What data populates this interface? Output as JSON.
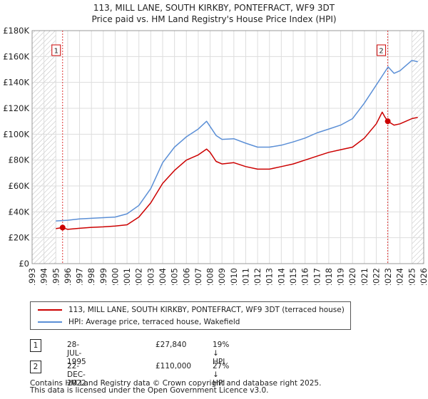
{
  "header": {
    "title": "113, MILL LANE, SOUTH KIRKBY, PONTEFRACT, WF9 3DT",
    "subtitle": "Price paid vs. HM Land Registry's House Price Index (HPI)"
  },
  "chart_data": {
    "type": "line",
    "title": "113, MILL LANE, SOUTH KIRKBY, PONTEFRACT, WF9 3DT",
    "subtitle": "Price paid vs. HM Land Registry's House Price Index (HPI)",
    "xlabel": "",
    "ylabel": "",
    "xlim": [
      1993,
      2026
    ],
    "ylim": [
      0,
      180000
    ],
    "grid": true,
    "x_ticks": [
      "1993",
      "1994",
      "1995",
      "1996",
      "1997",
      "1998",
      "1999",
      "2000",
      "2001",
      "2002",
      "2003",
      "2004",
      "2005",
      "2006",
      "2007",
      "2008",
      "2009",
      "2010",
      "2011",
      "2012",
      "2013",
      "2014",
      "2015",
      "2016",
      "2017",
      "2018",
      "2019",
      "2020",
      "2021",
      "2022",
      "2023",
      "2024",
      "2025",
      "2026"
    ],
    "y_ticks": [
      {
        "value": 0,
        "label": "£0"
      },
      {
        "value": 20000,
        "label": "£20K"
      },
      {
        "value": 40000,
        "label": "£40K"
      },
      {
        "value": 60000,
        "label": "£60K"
      },
      {
        "value": 80000,
        "label": "£80K"
      },
      {
        "value": 100000,
        "label": "£100K"
      },
      {
        "value": 120000,
        "label": "£120K"
      },
      {
        "value": 140000,
        "label": "£140K"
      },
      {
        "value": 160000,
        "label": "£160K"
      },
      {
        "value": 180000,
        "label": "£180K"
      }
    ],
    "hatched_regions": [
      [
        1993,
        1995.0
      ],
      [
        2025.0,
        2026
      ]
    ],
    "series": [
      {
        "name": "113, MILL LANE, SOUTH KIRKBY, PONTEFRACT, WF9 3DT (terraced house)",
        "color": "#cc0000",
        "points": [
          [
            1995.0,
            27000
          ],
          [
            1995.57,
            27840
          ],
          [
            1996.0,
            26500
          ],
          [
            1997.0,
            27300
          ],
          [
            1998.0,
            28000
          ],
          [
            1999.0,
            28400
          ],
          [
            2000.0,
            29000
          ],
          [
            2001.0,
            30000
          ],
          [
            2002.0,
            36000
          ],
          [
            2003.0,
            47000
          ],
          [
            2004.0,
            62000
          ],
          [
            2005.0,
            72000
          ],
          [
            2006.0,
            80000
          ],
          [
            2007.0,
            84000
          ],
          [
            2007.7,
            88500
          ],
          [
            2008.0,
            86000
          ],
          [
            2008.5,
            79000
          ],
          [
            2009.0,
            77000
          ],
          [
            2010.0,
            78000
          ],
          [
            2011.0,
            75000
          ],
          [
            2012.0,
            73000
          ],
          [
            2013.0,
            73000
          ],
          [
            2014.0,
            75000
          ],
          [
            2015.0,
            77000
          ],
          [
            2016.0,
            80000
          ],
          [
            2017.0,
            83000
          ],
          [
            2018.0,
            86000
          ],
          [
            2019.0,
            88000
          ],
          [
            2020.0,
            90000
          ],
          [
            2021.0,
            97000
          ],
          [
            2022.0,
            108000
          ],
          [
            2022.5,
            117000
          ],
          [
            2022.75,
            113000
          ],
          [
            2022.97,
            110000
          ],
          [
            2023.5,
            107000
          ],
          [
            2024.0,
            108000
          ],
          [
            2024.5,
            110000
          ],
          [
            2025.0,
            112000
          ],
          [
            2025.5,
            113000
          ]
        ]
      },
      {
        "name": "HPI: Average price, terraced house, Wakefield",
        "color": "#5b8fd6",
        "points": [
          [
            1995.0,
            33000
          ],
          [
            1996.0,
            33500
          ],
          [
            1997.0,
            34500
          ],
          [
            1998.0,
            35000
          ],
          [
            1999.0,
            35500
          ],
          [
            2000.0,
            36000
          ],
          [
            2001.0,
            38500
          ],
          [
            2002.0,
            45000
          ],
          [
            2003.0,
            58000
          ],
          [
            2004.0,
            78000
          ],
          [
            2005.0,
            90000
          ],
          [
            2006.0,
            98000
          ],
          [
            2007.0,
            104000
          ],
          [
            2007.7,
            110000
          ],
          [
            2008.0,
            106000
          ],
          [
            2008.5,
            99000
          ],
          [
            2009.0,
            96000
          ],
          [
            2010.0,
            96500
          ],
          [
            2011.0,
            93000
          ],
          [
            2012.0,
            90000
          ],
          [
            2013.0,
            90000
          ],
          [
            2014.0,
            91500
          ],
          [
            2015.0,
            94000
          ],
          [
            2016.0,
            97000
          ],
          [
            2017.0,
            101000
          ],
          [
            2018.0,
            104000
          ],
          [
            2019.0,
            107000
          ],
          [
            2020.0,
            112000
          ],
          [
            2021.0,
            124000
          ],
          [
            2022.0,
            138000
          ],
          [
            2022.5,
            145000
          ],
          [
            2023.0,
            152000
          ],
          [
            2023.5,
            147000
          ],
          [
            2024.0,
            149000
          ],
          [
            2024.5,
            153000
          ],
          [
            2025.0,
            157000
          ],
          [
            2025.5,
            156000
          ]
        ]
      }
    ],
    "sales": [
      {
        "marker": "1",
        "x": 1995.57,
        "y": 27840
      },
      {
        "marker": "2",
        "x": 2022.97,
        "y": 110000
      }
    ]
  },
  "legend": {
    "entries": [
      {
        "label": "113, MILL LANE, SOUTH KIRKBY, PONTEFRACT, WF9 3DT (terraced house)",
        "color": "#cc0000"
      },
      {
        "label": "HPI: Average price, terraced house, Wakefield",
        "color": "#5b8fd6"
      }
    ]
  },
  "annotations": [
    {
      "marker": "1",
      "date": "28-JUL-1995",
      "price": "£27,840",
      "hpi": "19% ↓ HPI"
    },
    {
      "marker": "2",
      "date": "22-DEC-2022",
      "price": "£110,000",
      "hpi": "27% ↓ HPI"
    }
  ],
  "footer": {
    "line1": "Contains HM Land Registry data © Crown copyright and database right 2025.",
    "line2": "This data is licensed under the Open Government Licence v3.0."
  }
}
